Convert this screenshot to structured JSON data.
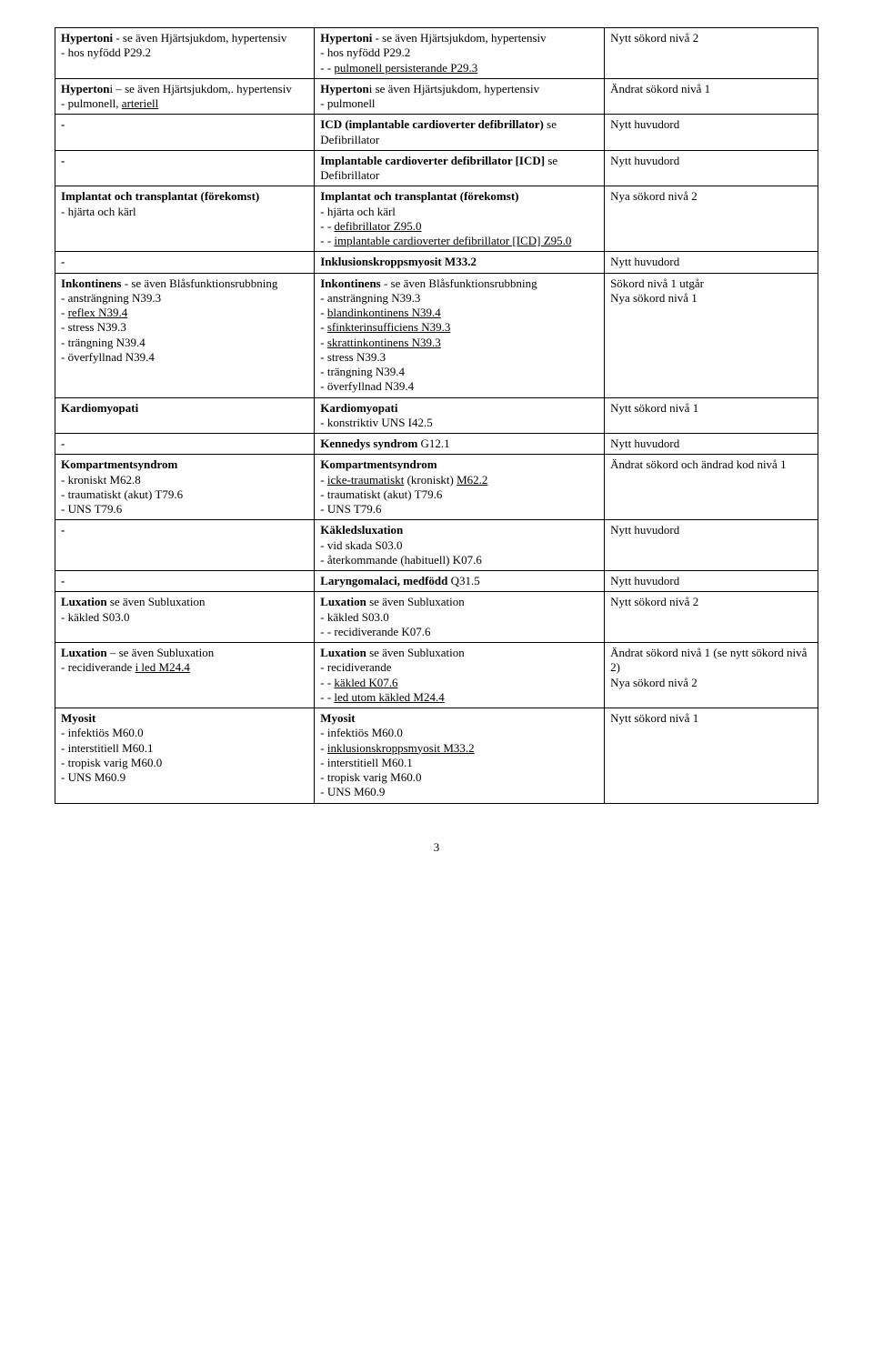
{
  "rows": [
    {
      "c1": [
        {
          "runs": [
            {
              "t": "Hypertoni",
              "b": true
            },
            {
              "t": "  - se även Hjärtsjukdom, hypertensiv"
            }
          ]
        },
        {
          "runs": [
            {
              "t": " - hos nyfödd P29.2"
            }
          ]
        }
      ],
      "c2": [
        {
          "runs": [
            {
              "t": "Hypertoni",
              "b": true
            },
            {
              "t": "  - se även Hjärtsjukdom, hypertensiv"
            }
          ]
        },
        {
          "runs": [
            {
              "t": "- hos nyfödd P29.2"
            }
          ]
        },
        {
          "runs": [
            {
              "t": "- - "
            },
            {
              "t": "pulmonell persisterande P29.3",
              "u": true
            }
          ]
        }
      ],
      "c3": [
        {
          "runs": [
            {
              "t": "Nytt sökord nivå 2"
            }
          ]
        }
      ]
    },
    {
      "c1": [
        {
          "runs": [
            {
              "t": "Hyperton",
              "b": true
            },
            {
              "t": "i – se även Hjärtsjukdom,. hypertensiv"
            }
          ]
        },
        {
          "runs": [
            {
              "t": "- pulmonell, "
            },
            {
              "t": "arteriell",
              "u": true
            }
          ]
        }
      ],
      "c2": [
        {
          "runs": [
            {
              "t": "Hyperton",
              "b": true
            },
            {
              "t": "i se även Hjärtsjukdom, hypertensiv"
            }
          ]
        },
        {
          "runs": [
            {
              "t": "- pulmonell"
            }
          ]
        }
      ],
      "c3": [
        {
          "runs": [
            {
              "t": "Ändrat sökord nivå 1"
            }
          ]
        }
      ]
    },
    {
      "c1": [
        {
          "runs": [
            {
              "t": "-",
              "b": true
            }
          ]
        }
      ],
      "c2": [
        {
          "runs": [
            {
              "t": "ICD (implantable cardioverter defibrillator)",
              "b": true
            },
            {
              "t": " se Defibrillator"
            }
          ]
        }
      ],
      "c3": [
        {
          "runs": [
            {
              "t": "Nytt huvudord"
            }
          ]
        }
      ]
    },
    {
      "c1": [
        {
          "runs": [
            {
              "t": "-",
              "b": true
            }
          ]
        }
      ],
      "c2": [
        {
          "runs": [
            {
              "t": "Implantable cardioverter defibrillator [ICD]",
              "b": true
            },
            {
              "t": " se Defibrillator"
            }
          ]
        }
      ],
      "c3": [
        {
          "runs": [
            {
              "t": "Nytt huvudord"
            }
          ]
        }
      ]
    },
    {
      "c1": [
        {
          "runs": [
            {
              "t": "Implantat och transplantat (förekomst)",
              "b": true
            }
          ]
        },
        {
          "runs": [
            {
              "t": "- hjärta och kärl"
            }
          ]
        }
      ],
      "c2": [
        {
          "runs": [
            {
              "t": "Implantat och transplantat (förekomst)",
              "b": true
            }
          ]
        },
        {
          "runs": [
            {
              "t": "- hjärta och kärl"
            }
          ]
        },
        {
          "runs": [
            {
              "t": "- - "
            },
            {
              "t": "defibrillator Z95.0",
              "u": true
            }
          ]
        },
        {
          "runs": [
            {
              "t": "- - "
            },
            {
              "t": "implantable cardioverter defibrillator [ICD] Z95.0",
              "u": true
            }
          ]
        }
      ],
      "c3": [
        {
          "runs": [
            {
              "t": "Nya sökord nivå 2"
            }
          ]
        }
      ]
    },
    {
      "c1": [
        {
          "runs": [
            {
              "t": "-",
              "b": true
            }
          ]
        }
      ],
      "c2": [
        {
          "runs": [
            {
              "t": "Inklusionskroppsmyosit M33.2",
              "b": true
            }
          ]
        }
      ],
      "c3": [
        {
          "runs": [
            {
              "t": "Nytt huvudord"
            }
          ]
        }
      ]
    },
    {
      "c1": [
        {
          "runs": [
            {
              "t": "Inkontinens",
              "b": true
            },
            {
              "t": "  - se även Blåsfunktionsrubbning"
            }
          ]
        },
        {
          "runs": [
            {
              "t": " - ansträngning N39.3"
            }
          ]
        },
        {
          "runs": [
            {
              "t": " - "
            },
            {
              "t": "reflex N39.4",
              "u": true
            }
          ]
        },
        {
          "runs": [
            {
              "t": " - stress N39.3"
            }
          ]
        },
        {
          "runs": [
            {
              "t": " - trängning N39.4"
            }
          ]
        },
        {
          "runs": [
            {
              "t": "- överfyllnad N39.4"
            }
          ]
        }
      ],
      "c2": [
        {
          "runs": [
            {
              "t": "Inkontinens",
              "b": true
            },
            {
              "t": "  - se även Blåsfunktionsrubbning"
            }
          ]
        },
        {
          "runs": [
            {
              "t": " - ansträngning N39.3"
            }
          ]
        },
        {
          "runs": [
            {
              "t": " - "
            },
            {
              "t": "blandinkontinens N39.4",
              "u": true
            }
          ]
        },
        {
          "runs": [
            {
              "t": " - "
            },
            {
              "t": "sfinkterinsufficiens N39.3",
              "u": true
            }
          ]
        },
        {
          "runs": [
            {
              "t": " - "
            },
            {
              "t": "skrattinkontinens N39.3",
              "u": true
            }
          ]
        },
        {
          "runs": [
            {
              "t": " - stress N39.3"
            }
          ]
        },
        {
          "runs": [
            {
              "t": " - trängning N39.4"
            }
          ]
        },
        {
          "runs": [
            {
              "t": "- överfyllnad N39.4"
            }
          ]
        }
      ],
      "c3": [
        {
          "runs": [
            {
              "t": "Sökord nivå 1 utgår"
            }
          ]
        },
        {
          "runs": [
            {
              "t": "Nya sökord nivå 1"
            }
          ]
        }
      ]
    },
    {
      "c1": [
        {
          "runs": [
            {
              "t": "Kardiomyopati",
              "b": true
            }
          ]
        }
      ],
      "c2": [
        {
          "runs": [
            {
              "t": "Kardiomyopati",
              "b": true
            }
          ]
        },
        {
          "runs": [
            {
              "t": "- konstriktiv UNS I42.5"
            }
          ]
        }
      ],
      "c3": [
        {
          "runs": [
            {
              "t": "Nytt sökord nivå 1"
            }
          ]
        }
      ]
    },
    {
      "c1": [
        {
          "runs": [
            {
              "t": "-",
              "b": true
            }
          ]
        }
      ],
      "c2": [
        {
          "runs": [
            {
              "t": "Kennedys syndrom",
              "b": true
            },
            {
              "t": " G12.1"
            }
          ]
        }
      ],
      "c3": [
        {
          "runs": [
            {
              "t": "Nytt huvudord"
            }
          ]
        }
      ]
    },
    {
      "c1": [
        {
          "runs": [
            {
              "t": "Kompartmentsyndrom",
              "b": true
            }
          ]
        },
        {
          "runs": [
            {
              "t": "- kroniskt M62.8"
            }
          ]
        },
        {
          "runs": [
            {
              "t": "- traumatiskt (akut) T79.6"
            }
          ]
        },
        {
          "runs": [
            {
              "t": "- UNS T79.6"
            }
          ]
        }
      ],
      "c2": [
        {
          "runs": [
            {
              "t": "Kompartmentsyndrom",
              "b": true
            }
          ]
        },
        {
          "runs": [
            {
              "t": "- "
            },
            {
              "t": "icke-traumatiskt",
              "u": true
            },
            {
              "t": " (kroniskt) "
            },
            {
              "t": "M62.2",
              "u": true
            }
          ]
        },
        {
          "runs": [
            {
              "t": "- traumatiskt (akut) T79.6"
            }
          ]
        },
        {
          "runs": [
            {
              "t": "- UNS T79.6"
            }
          ]
        }
      ],
      "c3": [
        {
          "runs": [
            {
              "t": "Ändrat sökord och ändrad kod nivå 1"
            }
          ]
        }
      ]
    },
    {
      "c1": [
        {
          "runs": [
            {
              "t": "-",
              "b": true
            }
          ]
        }
      ],
      "c2": [
        {
          "runs": [
            {
              "t": "Käkledsluxation",
              "b": true
            }
          ]
        },
        {
          "runs": [
            {
              "t": "- vid skada S03.0"
            }
          ]
        },
        {
          "runs": [
            {
              "t": "- återkommande (habituell) K07.6"
            }
          ]
        }
      ],
      "c3": [
        {
          "runs": [
            {
              "t": "Nytt huvudord"
            }
          ]
        }
      ]
    },
    {
      "c1": [
        {
          "runs": [
            {
              "t": "-",
              "b": true
            }
          ]
        }
      ],
      "c2": [
        {
          "runs": [
            {
              "t": "Laryngomalaci, medfödd",
              "b": true
            },
            {
              "t": " Q31.5"
            }
          ]
        }
      ],
      "c3": [
        {
          "runs": [
            {
              "t": "Nytt huvudord"
            }
          ]
        }
      ]
    },
    {
      "c1": [
        {
          "runs": [
            {
              "t": "Luxation",
              "b": true
            },
            {
              "t": " se även Subluxation"
            }
          ]
        },
        {
          "runs": [
            {
              "t": "- käkled S03.0"
            }
          ]
        }
      ],
      "c2": [
        {
          "runs": [
            {
              "t": "Luxation",
              "b": true
            },
            {
              "t": " se även Subluxation"
            }
          ]
        },
        {
          "runs": [
            {
              "t": "- käkled S03.0"
            }
          ]
        },
        {
          "runs": [
            {
              "t": "- - recidiverande K07.6"
            }
          ]
        }
      ],
      "c3": [
        {
          "runs": [
            {
              "t": "Nytt sökord nivå 2"
            }
          ]
        }
      ]
    },
    {
      "c1": [
        {
          "runs": [
            {
              "t": "Luxation",
              "b": true
            },
            {
              "t": " – se även Subluxation"
            }
          ]
        },
        {
          "runs": [
            {
              "t": "- recidiverande "
            },
            {
              "t": "i led M24.4",
              "u": true
            }
          ]
        }
      ],
      "c2": [
        {
          "runs": [
            {
              "t": "Luxation",
              "b": true
            },
            {
              "t": " se även Subluxation"
            }
          ]
        },
        {
          "runs": [
            {
              "t": "- recidiverande"
            }
          ]
        },
        {
          "runs": [
            {
              "t": "- - "
            },
            {
              "t": "käkled K07.6",
              "u": true
            }
          ]
        },
        {
          "runs": [
            {
              "t": "- - "
            },
            {
              "t": "led utom käkled M24.4",
              "u": true
            }
          ]
        }
      ],
      "c3": [
        {
          "runs": [
            {
              "t": "Ändrat sökord  nivå 1 (se nytt sökord nivå 2)"
            }
          ]
        },
        {
          "runs": [
            {
              "t": "Nya sökord nivå 2"
            }
          ]
        }
      ]
    },
    {
      "c1": [
        {
          "runs": [
            {
              "t": "Myosit",
              "b": true
            }
          ]
        },
        {
          "runs": [
            {
              "t": "- infektiös M60.0"
            }
          ]
        },
        {
          "runs": [
            {
              "t": "- interstitiell M60.1"
            }
          ]
        },
        {
          "runs": [
            {
              "t": "- tropisk varig M60.0"
            }
          ]
        },
        {
          "runs": [
            {
              "t": "- UNS M60.9"
            }
          ]
        }
      ],
      "c2": [
        {
          "runs": [
            {
              "t": "Myosit",
              "b": true
            }
          ]
        },
        {
          "runs": [
            {
              "t": "- infektiös M60.0"
            }
          ]
        },
        {
          "runs": [
            {
              "t": "- "
            },
            {
              "t": "inklusionskroppsmyosit M33.2",
              "u": true
            }
          ]
        },
        {
          "runs": [
            {
              "t": "- interstitiell M60.1"
            }
          ]
        },
        {
          "runs": [
            {
              "t": "- tropisk varig M60.0"
            }
          ]
        },
        {
          "runs": [
            {
              "t": "- UNS M60.9"
            }
          ]
        }
      ],
      "c3": [
        {
          "runs": [
            {
              "t": "Nytt sökord nivå 1"
            }
          ]
        }
      ]
    }
  ],
  "page_number": "3"
}
